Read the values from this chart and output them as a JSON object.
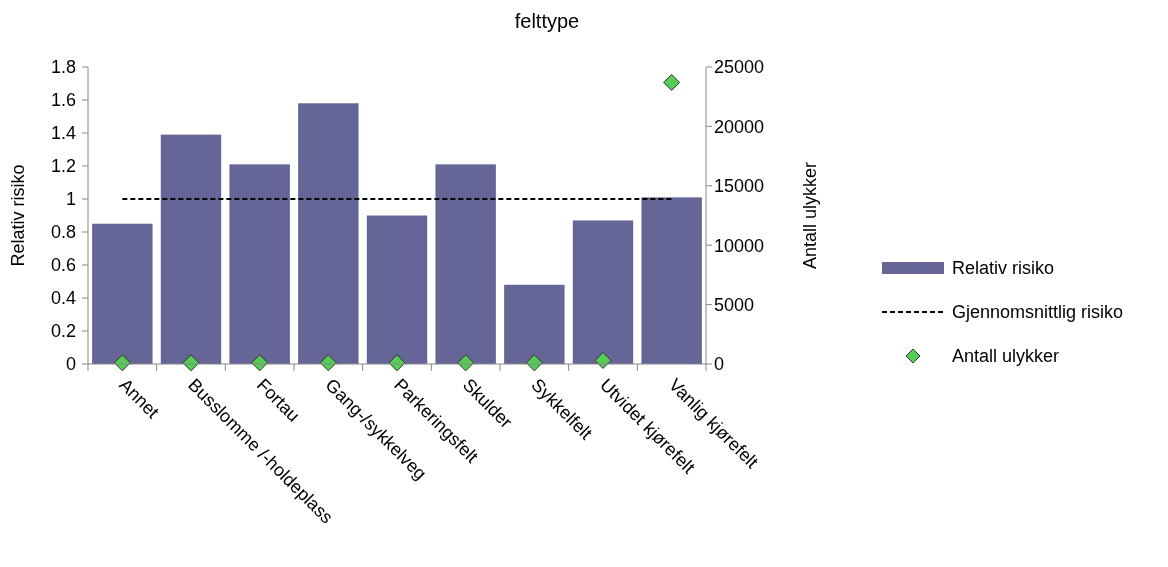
{
  "chart_data": {
    "type": "bar",
    "title": "felttype",
    "ylabel": "Relativ risiko",
    "y2label": "Antall ulykker",
    "categories": [
      "Annet",
      "Busslomme /-holdeplass",
      "Fortau",
      "Gang-/sykkelveg",
      "Parkeringsfelt",
      "Skulder",
      "Sykkelfelt",
      "Utvidet kjørefelt",
      "Vanlig kjørefelt"
    ],
    "series": [
      {
        "name": "Relativ risiko",
        "color": "#656597",
        "values": [
          0.85,
          1.39,
          1.21,
          1.58,
          0.9,
          1.21,
          0.48,
          0.87,
          1.01
        ]
      },
      {
        "name": "Gjennomsnittlig risiko",
        "type": "line",
        "color": "#000000",
        "line_style": "dashed",
        "marker": "none",
        "values": [
          1,
          1,
          1,
          1,
          1,
          1,
          1,
          1,
          1
        ]
      },
      {
        "name": "Antall ulykker",
        "type": "scatter",
        "axis": "y2",
        "color": "#55cc55",
        "marker": "diamond",
        "values": [
          100,
          100,
          100,
          100,
          100,
          100,
          100,
          300,
          23700
        ]
      }
    ],
    "ylim": [
      0,
      1.8
    ],
    "yticks": [
      0,
      0.2,
      0.4,
      0.6,
      0.8,
      1,
      1.2,
      1.4,
      1.6,
      1.8
    ],
    "y2lim": [
      0,
      25000
    ],
    "y2ticks": [
      0,
      5000,
      10000,
      15000,
      20000,
      25000
    ],
    "legend": "right"
  }
}
